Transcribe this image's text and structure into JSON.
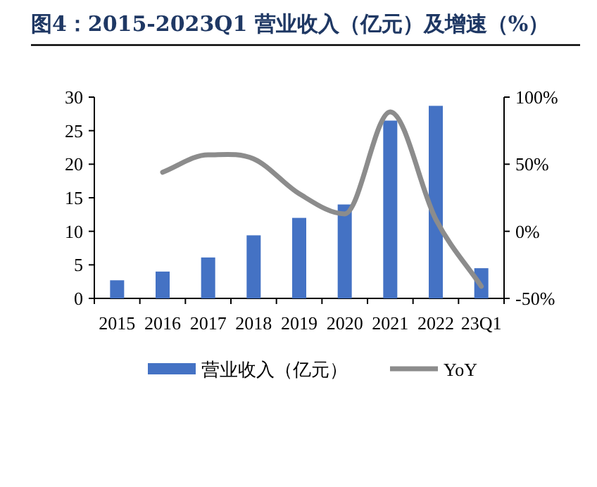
{
  "chart_data": {
    "type": "bar",
    "title": "**图4：2015-2023Q1 营业收入（亿元）及增速（%）**",
    "categories": [
      "2015",
      "2016",
      "2017",
      "2018",
      "2019",
      "2020",
      "2021",
      "2022",
      "23Q1"
    ],
    "series": [
      {
        "name": "营业收入（亿元）",
        "color": "#4472c4",
        "values": [
          2.7,
          4.0,
          6.1,
          9.4,
          12.0,
          14.0,
          26.5,
          28.7,
          4.5
        ]
      },
      {
        "name": "YoY",
        "type": "line",
        "axis": "y2",
        "color": "#8c8c8c",
        "values": [
          null,
          44,
          57,
          54,
          28,
          13,
          89,
          9,
          -41
        ]
      }
    ],
    "ylim": [
      0,
      30
    ],
    "yticks": [
      0,
      5,
      10,
      15,
      20,
      25,
      30
    ],
    "y2lim": [
      -50,
      100
    ],
    "y2ticks": [
      {
        "value": -50,
        "label": "-50%"
      },
      {
        "value": 0,
        "label": "0%"
      },
      {
        "value": 50,
        "label": "50%"
      },
      {
        "value": 100,
        "label": "100%"
      }
    ],
    "legend": "bottom",
    "grid": false
  }
}
